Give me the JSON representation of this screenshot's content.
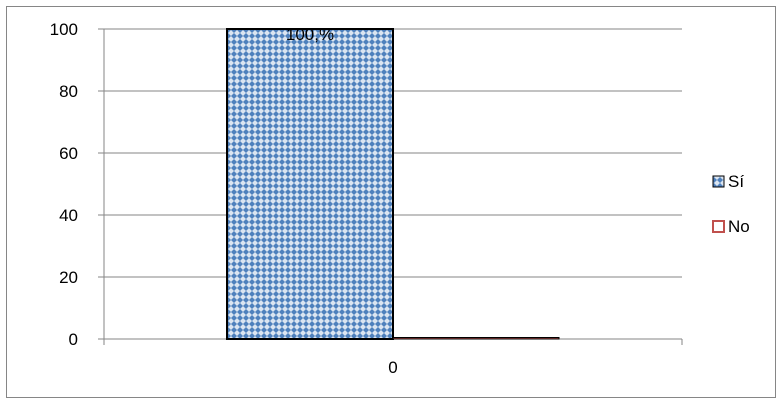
{
  "chart_data": {
    "type": "bar",
    "categories": [
      "0"
    ],
    "series": [
      {
        "name": "Sí",
        "values": [
          100
        ],
        "data_label": "100,%"
      },
      {
        "name": "No",
        "values": [
          0
        ]
      }
    ],
    "ylim": [
      0,
      100
    ],
    "yticks": [
      0,
      20,
      40,
      60,
      80,
      100
    ],
    "grid": true,
    "legend_placement": "right",
    "colors": {
      "si": "#4f81bd",
      "no": "#c0504d",
      "grid": "#868686",
      "axis": "#868686"
    },
    "title": "",
    "xlabel": "",
    "ylabel": ""
  }
}
